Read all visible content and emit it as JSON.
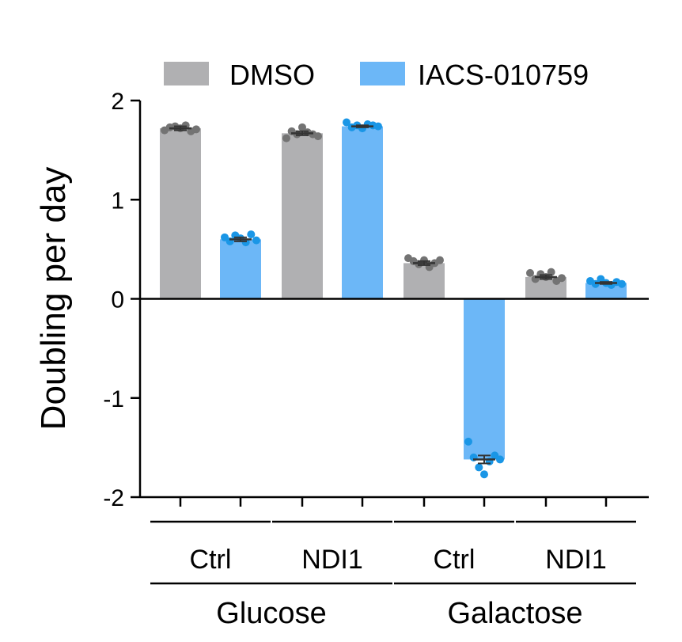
{
  "chart_data": {
    "type": "bar",
    "ylabel": "Doubling per day",
    "ylim": [
      -2,
      2
    ],
    "yticks": [
      2,
      1,
      0,
      -1,
      -2
    ],
    "ytick_labels": [
      "2",
      "1",
      "0",
      "-1",
      "-2"
    ],
    "grid": false,
    "legend_position": "top",
    "categories": [
      {
        "section": "Glucose",
        "label": "Ctrl"
      },
      {
        "section": "Glucose",
        "label": "NDI1"
      },
      {
        "section": "Galactose",
        "label": "Ctrl"
      },
      {
        "section": "Galactose",
        "label": "NDI1"
      }
    ],
    "sections": [
      "Glucose",
      "Galactose"
    ],
    "series": [
      {
        "name": "DMSO",
        "bar_color": "#b0b0b2",
        "point_color": "#737373",
        "values": [
          1.72,
          1.67,
          0.36,
          0.22
        ],
        "errors": [
          0.02,
          0.02,
          0.02,
          0.02
        ],
        "points": [
          [
            1.7,
            1.73,
            1.74,
            1.72,
            1.75,
            1.69,
            1.71
          ],
          [
            1.62,
            1.69,
            1.66,
            1.73,
            1.68,
            1.66,
            1.64
          ],
          [
            0.41,
            0.38,
            0.35,
            0.39,
            0.32,
            0.36,
            0.39
          ],
          [
            0.26,
            0.2,
            0.25,
            0.22,
            0.27,
            0.18,
            0.21
          ]
        ]
      },
      {
        "name": "IACS-010759",
        "bar_color": "#6cb7f7",
        "point_color": "#1a96e6",
        "values": [
          0.6,
          1.74,
          -1.62,
          0.16
        ],
        "errors": [
          0.02,
          0.01,
          0.04,
          0.01
        ],
        "points": [
          [
            0.62,
            0.58,
            0.64,
            0.61,
            0.57,
            0.65,
            0.59
          ],
          [
            1.78,
            1.73,
            1.75,
            1.72,
            1.76,
            1.75,
            1.74
          ],
          [
            -1.44,
            -1.6,
            -1.7,
            -1.77,
            -1.64,
            -1.58,
            -1.62
          ],
          [
            0.18,
            0.15,
            0.2,
            0.16,
            0.14,
            0.17,
            0.15
          ]
        ]
      }
    ]
  }
}
